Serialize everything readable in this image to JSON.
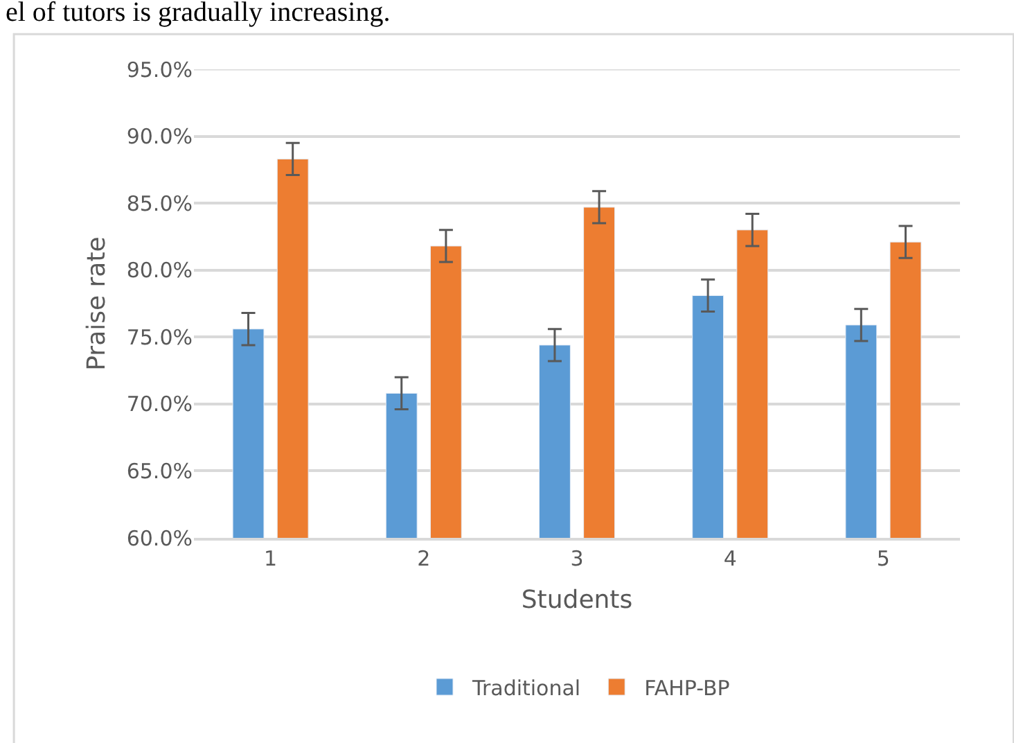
{
  "chart_data": {
    "type": "bar",
    "xlabel": "Students",
    "ylabel": "Praise rate",
    "categories": [
      "1",
      "2",
      "3",
      "4",
      "5"
    ],
    "series": [
      {
        "name": "Traditional",
        "color": "#5b9bd5",
        "values": [
          75.6,
          70.8,
          74.4,
          78.1,
          75.9
        ],
        "errors": [
          1.2,
          1.2,
          1.2,
          1.2,
          1.2
        ]
      },
      {
        "name": "FAHP-BP",
        "color": "#ed7d31",
        "values": [
          88.3,
          81.8,
          84.7,
          83.0,
          82.1
        ],
        "errors": [
          1.2,
          1.2,
          1.2,
          1.2,
          1.2
        ]
      }
    ],
    "ylim": [
      60,
      95
    ],
    "yticks": [
      {
        "value": 60,
        "label": "60.0%"
      },
      {
        "value": 65,
        "label": "65.0%"
      },
      {
        "value": 70,
        "label": "70.0%"
      },
      {
        "value": 75,
        "label": "75.0%"
      },
      {
        "value": 80,
        "label": "80.0%"
      },
      {
        "value": 85,
        "label": "85.0%"
      },
      {
        "value": 90,
        "label": "90.0%"
      },
      {
        "value": 95,
        "label": "95.0%"
      }
    ],
    "grid": "y",
    "legend": "bottom",
    "annotations": [
      "el of tutors is gradually increasing."
    ]
  }
}
